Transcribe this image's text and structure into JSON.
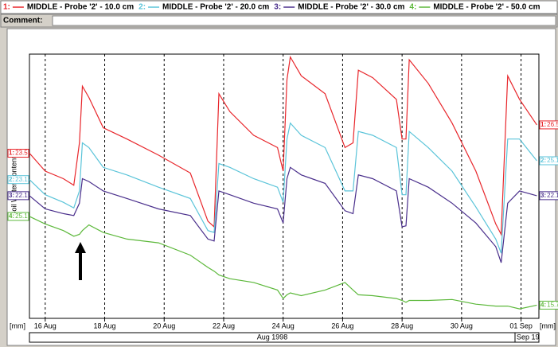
{
  "chart_data": {
    "type": "line",
    "comment_label": "Comment:",
    "y_label": "Soil Water Content",
    "x_unit": "[mm]",
    "y2_unit": "[mm]",
    "months": [
      "Aug 1998",
      "Sep 19"
    ],
    "xlim": [
      15.47,
      32.6
    ],
    "xticks": [
      {
        "value": 16,
        "label": "16 Aug"
      },
      {
        "value": 18,
        "label": "18 Aug"
      },
      {
        "value": 20,
        "label": "20 Aug"
      },
      {
        "value": 22,
        "label": "22 Aug"
      },
      {
        "value": 24,
        "label": "24 Aug"
      },
      {
        "value": 26,
        "label": "26 Aug"
      },
      {
        "value": 28,
        "label": "28 Aug"
      },
      {
        "value": 30,
        "label": "30 Aug"
      },
      {
        "value": 32,
        "label": "01 Sep"
      }
    ],
    "grid": true,
    "x": [
      15.47,
      16,
      16.61,
      16.96,
      17.15,
      17.25,
      17.47,
      17.95,
      18.75,
      19.81,
      20.88,
      21.47,
      21.68,
      21.84,
      22.21,
      23.01,
      23.81,
      24,
      24.13,
      24.24,
      24.61,
      25.41,
      26.08,
      26.35,
      26.53,
      27.01,
      27.81,
      28,
      28.13,
      28.24,
      28.88,
      29.68,
      30.48,
      31.15,
      31.33,
      31.55,
      31.95,
      32.53
    ],
    "series": [
      {
        "key": "1:",
        "name": "MIDDLE - Probe '2' - 10.0 cm",
        "color": "#e8262b",
        "ylim": [
          6,
          34
        ],
        "values": [
          23.5,
          21.6,
          20.8,
          20.1,
          24.6,
          30.6,
          29.4,
          26.2,
          25.0,
          23.3,
          21.4,
          16.3,
          15.7,
          29.8,
          27.9,
          25.4,
          24.1,
          21.6,
          31.3,
          33.7,
          31.7,
          29.8,
          24.1,
          24.6,
          32.3,
          31.5,
          29.2,
          25.0,
          25.0,
          33.4,
          30.9,
          26.7,
          21.6,
          16.0,
          14.9,
          31.7,
          29.2,
          26.5
        ],
        "value_labels": [
          "23.5",
          null,
          null,
          null,
          null,
          null,
          null,
          null,
          null,
          null,
          null,
          null,
          null,
          null,
          null,
          null,
          null,
          null,
          null,
          null,
          null,
          null,
          null,
          null,
          null,
          null,
          null,
          null,
          null,
          null,
          null,
          null,
          null,
          null,
          null,
          null,
          null,
          "26.5"
        ]
      },
      {
        "key": "2:",
        "name": "MIDDLE - Probe '2' - 20.0 cm",
        "color": "#5bc4d9",
        "ylim": [
          8.4,
          36.4
        ],
        "values": [
          23.1,
          21.5,
          20.7,
          20.1,
          21.9,
          27.0,
          26.5,
          24.4,
          23.6,
          22.3,
          21.1,
          17.7,
          17.5,
          24.8,
          24.4,
          23.2,
          22.3,
          20.7,
          27.4,
          29.1,
          27.8,
          26.5,
          21.9,
          21.9,
          28.2,
          27.8,
          26.5,
          21.5,
          21.5,
          28.2,
          26.5,
          24.0,
          20.2,
          16.8,
          15.3,
          27.4,
          27.4,
          25.1
        ],
        "value_labels": [
          "23.1",
          null,
          null,
          null,
          null,
          null,
          null,
          null,
          null,
          null,
          null,
          null,
          null,
          null,
          null,
          null,
          null,
          null,
          null,
          null,
          null,
          null,
          null,
          null,
          null,
          null,
          null,
          null,
          null,
          null,
          null,
          null,
          null,
          null,
          null,
          null,
          null,
          "25.1"
        ]
      },
      {
        "key": "3:",
        "name": "MIDDLE - Probe '2' - 30.0 cm",
        "color": "#4a2f8c",
        "ylim": [
          9.1,
          37.1
        ],
        "values": [
          22.1,
          20.7,
          20.2,
          20.0,
          21.3,
          23.9,
          23.6,
          22.6,
          21.8,
          20.7,
          20.0,
          17.5,
          17.3,
          22.6,
          22.2,
          21.3,
          20.7,
          19.2,
          23.9,
          25.1,
          24.3,
          23.4,
          20.5,
          20.2,
          24.3,
          23.9,
          22.6,
          18.8,
          18.9,
          23.9,
          23.0,
          21.3,
          19.2,
          16.7,
          15.0,
          21.3,
          22.6,
          22.1
        ],
        "value_labels": [
          "22.1",
          null,
          null,
          null,
          null,
          null,
          null,
          null,
          null,
          null,
          null,
          null,
          null,
          null,
          null,
          null,
          null,
          null,
          null,
          null,
          null,
          null,
          null,
          null,
          null,
          null,
          null,
          null,
          null,
          null,
          null,
          null,
          null,
          null,
          null,
          null,
          null,
          "22.1"
        ]
      },
      {
        "key": "4:",
        "name": "MIDDLE - Probe '2' - 50.0 cm",
        "color": "#5cb83a",
        "ylim": [
          14.3,
          42.3
        ],
        "values": [
          25.1,
          24.3,
          23.6,
          23.0,
          23.2,
          23.6,
          24.2,
          23.4,
          22.7,
          22.3,
          21.0,
          19.7,
          19.3,
          18.9,
          18.5,
          18.1,
          17.3,
          16.4,
          16.8,
          17.0,
          16.7,
          17.3,
          18.1,
          17.3,
          16.8,
          16.7,
          16.4,
          16.2,
          16.0,
          16.2,
          16.2,
          16.3,
          15.8,
          15.6,
          15.6,
          15.6,
          15.3,
          15.7
        ],
        "value_labels": [
          "25.1",
          null,
          null,
          null,
          null,
          null,
          null,
          null,
          null,
          null,
          null,
          null,
          null,
          null,
          null,
          null,
          null,
          null,
          null,
          null,
          null,
          null,
          null,
          null,
          null,
          null,
          null,
          null,
          null,
          null,
          null,
          null,
          null,
          null,
          null,
          null,
          null,
          "15.7"
        ]
      }
    ]
  }
}
